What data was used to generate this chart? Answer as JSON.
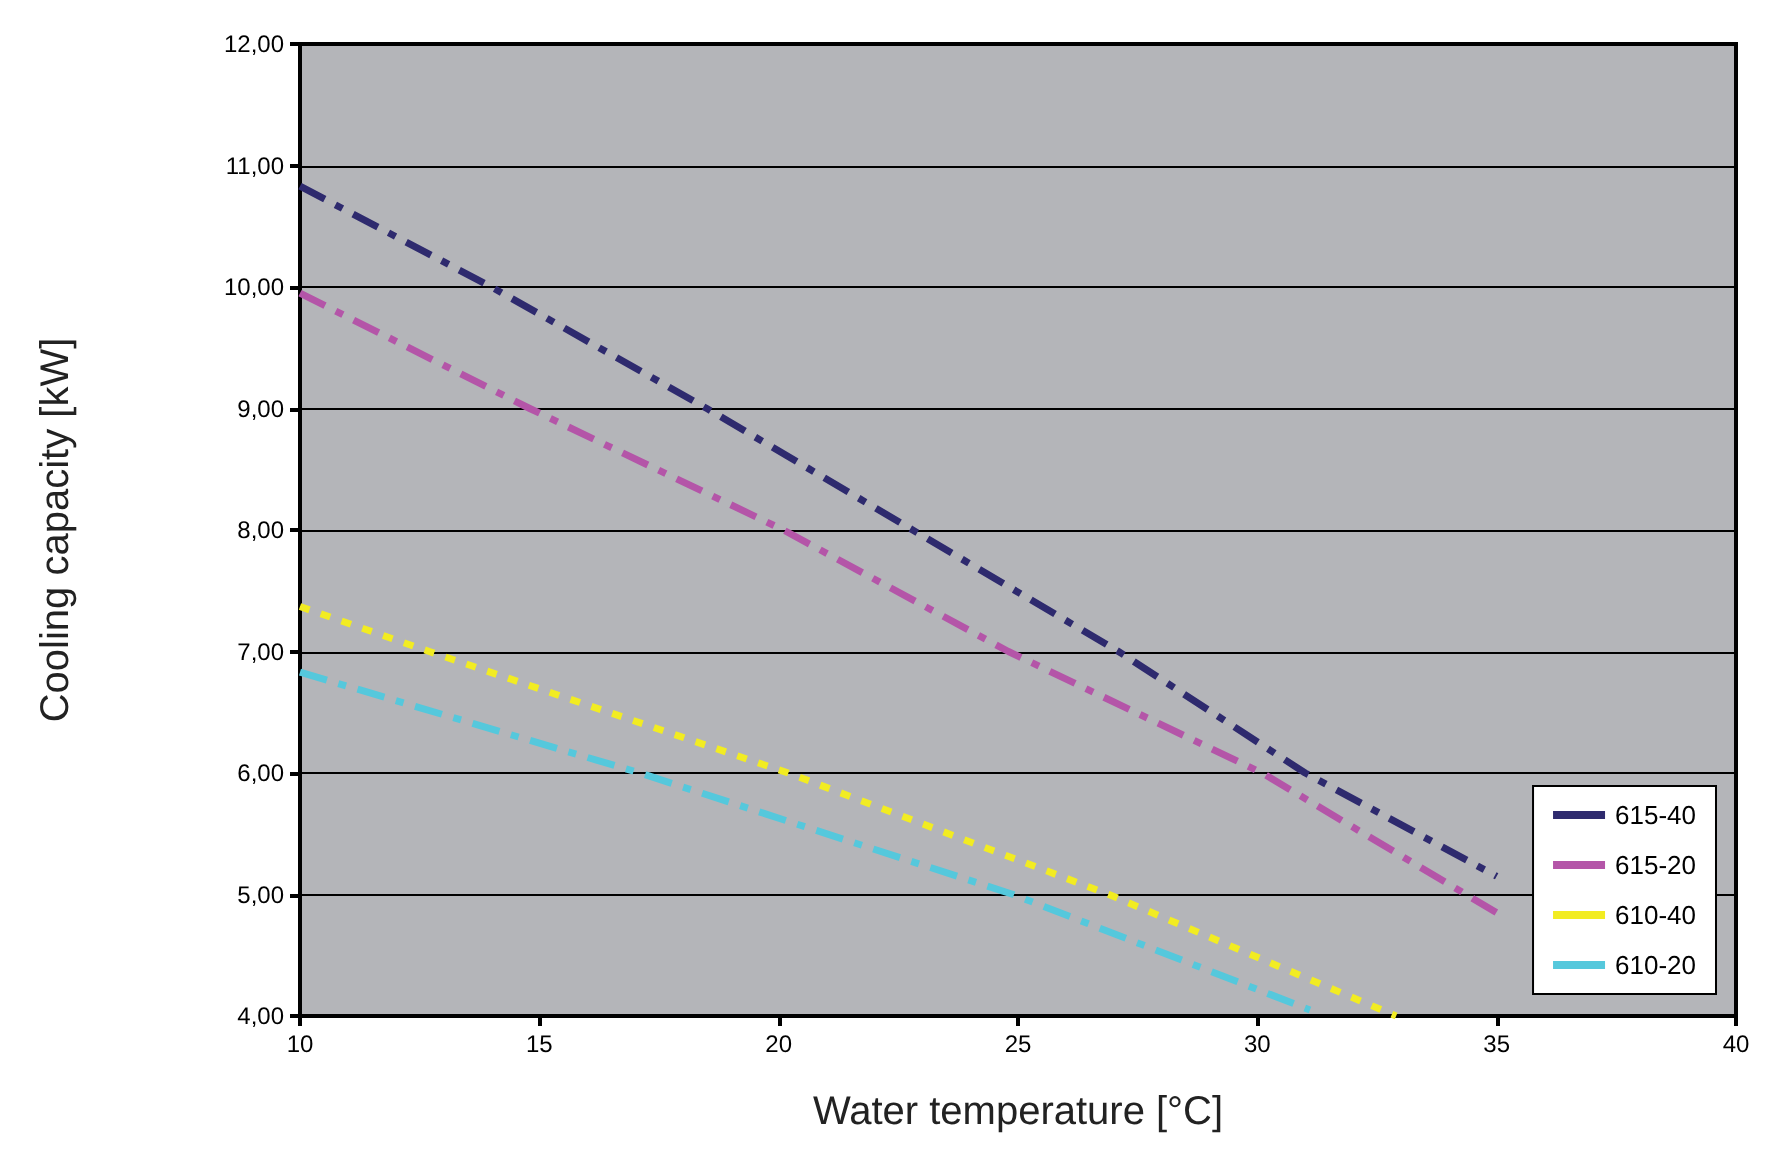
{
  "chart_data": {
    "type": "line",
    "xlabel": "Water temperature [°C]",
    "ylabel": "Cooling capacity [kW]",
    "xlim": [
      10,
      40
    ],
    "xticks": [
      10,
      15,
      20,
      25,
      30,
      35,
      40
    ],
    "ylim": [
      4,
      12
    ],
    "yticks": [
      {
        "value": 4,
        "label": "4,00"
      },
      {
        "value": 5,
        "label": "5,00"
      },
      {
        "value": 6,
        "label": "6,00"
      },
      {
        "value": 7,
        "label": "7,00"
      },
      {
        "value": 8,
        "label": "8,00"
      },
      {
        "value": 9,
        "label": "9,00"
      },
      {
        "value": 10,
        "label": "10,00"
      },
      {
        "value": 11,
        "label": "11,00"
      },
      {
        "value": 12,
        "label": "12,00"
      }
    ],
    "grid": "y",
    "legend": "bottom right",
    "marker": "none",
    "series": [
      {
        "name": "615-40",
        "color": "#2e2a6e",
        "line_style": "dashed",
        "x": [
          10,
          14,
          18.5,
          22.8,
          27.1,
          31,
          35
        ],
        "values": [
          10.83,
          10,
          9,
          8,
          7,
          6,
          5.15
        ]
      },
      {
        "name": "615-20",
        "color": "#b455a8",
        "line_style": "dashed",
        "x": [
          10,
          14.8,
          20.1,
          24.8,
          30.1,
          35
        ],
        "values": [
          9.95,
          9,
          8,
          7,
          6,
          4.85
        ]
      },
      {
        "name": "610-40",
        "color": "#f2ec22",
        "line_style": "dotted",
        "x": [
          10,
          12.7,
          20.2,
          26.9,
          32.9
        ],
        "values": [
          7.37,
          7,
          6,
          5,
          4
        ]
      },
      {
        "name": "610-20",
        "color": "#55c8dc",
        "line_style": "dashed",
        "x": [
          10,
          17.1,
          24.9,
          31.1
        ],
        "values": [
          6.83,
          6,
          5,
          4.05
        ]
      }
    ]
  }
}
